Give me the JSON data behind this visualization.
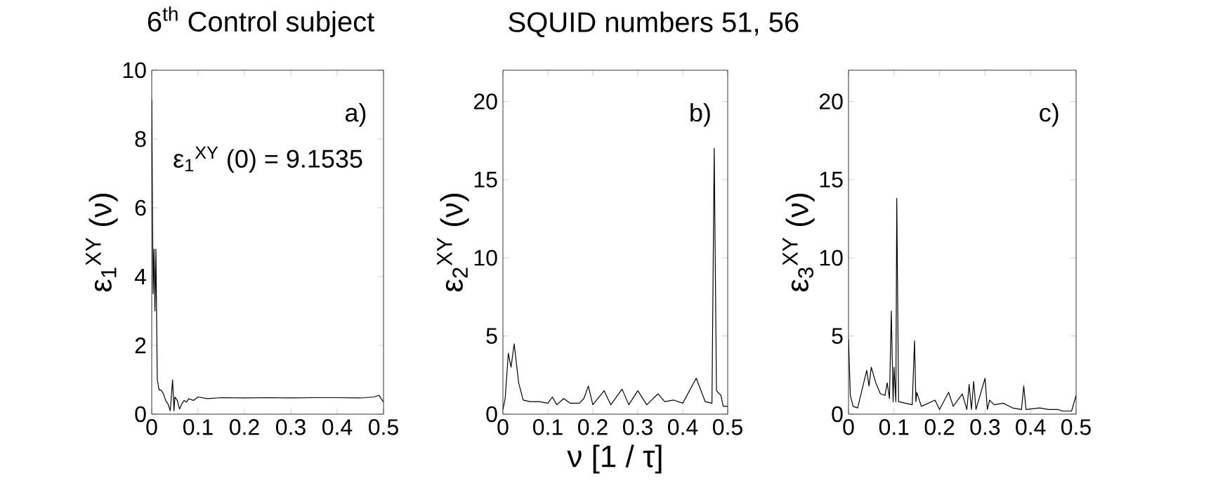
{
  "chart_data": [
    {
      "type": "line",
      "title": "6$^{th}$ Control subject",
      "ylabel": "ε$_{1}$$^{XY}$ (ν)",
      "annotations": [
        "a)",
        "ε$_{1}$$^{XY}$ (0) = 9.1535"
      ],
      "color": "#000000",
      "x": [
        0,
        0.003,
        0.005,
        0.007,
        0.009,
        0.012,
        0.016,
        0.02,
        0.025,
        0.03,
        0.035,
        0.04,
        0.045,
        0.048,
        0.05,
        0.055,
        0.06,
        0.065,
        0.07,
        0.075,
        0.08,
        0.09,
        0.1,
        0.12,
        0.15,
        0.2,
        0.25,
        0.3,
        0.35,
        0.4,
        0.45,
        0.48,
        0.49,
        0.495,
        0.5
      ],
      "values": [
        9.15,
        3.5,
        4.8,
        3.0,
        4.8,
        1.0,
        0.7,
        0.7,
        0.6,
        0.4,
        0.3,
        0.1,
        1.0,
        0.1,
        0.5,
        0.4,
        0.15,
        0.3,
        0.4,
        0.35,
        0.45,
        0.4,
        0.5,
        0.45,
        0.48,
        0.47,
        0.48,
        0.47,
        0.48,
        0.48,
        0.47,
        0.5,
        0.55,
        0.45,
        0.35
      ],
      "xlim": [
        0,
        0.5
      ],
      "ylim": [
        0,
        10
      ],
      "xticks": [
        0,
        0.1,
        0.2,
        0.3,
        0.4,
        0.5
      ],
      "yticks": [
        0,
        2,
        4,
        6,
        8,
        10
      ]
    },
    {
      "type": "line",
      "title": "SQUID numbers 51, 56",
      "xlabel": "ν [1 / τ]",
      "ylabel": "ε$_{2}$$^{XY}$ (ν)",
      "annotations": [
        "b)"
      ],
      "color": "#000000",
      "x": [
        0,
        0.005,
        0.012,
        0.018,
        0.025,
        0.035,
        0.045,
        0.06,
        0.08,
        0.1,
        0.11,
        0.12,
        0.135,
        0.15,
        0.17,
        0.18,
        0.19,
        0.2,
        0.225,
        0.24,
        0.265,
        0.28,
        0.3,
        0.32,
        0.345,
        0.36,
        0.38,
        0.4,
        0.43,
        0.45,
        0.465,
        0.47,
        0.475,
        0.485,
        0.49,
        0.5
      ],
      "values": [
        0.3,
        1.0,
        3.9,
        3.0,
        4.5,
        2.0,
        0.9,
        0.8,
        0.8,
        0.7,
        1.1,
        0.6,
        1.0,
        0.7,
        0.7,
        1.0,
        1.8,
        0.6,
        1.5,
        0.6,
        1.6,
        0.6,
        1.5,
        0.6,
        1.3,
        0.8,
        0.9,
        0.7,
        2.3,
        0.8,
        0.7,
        17.0,
        1.5,
        1.2,
        0.5,
        0.5
      ],
      "xlim": [
        0,
        0.5
      ],
      "ylim": [
        0,
        22
      ],
      "xticks": [
        0,
        0.1,
        0.2,
        0.3,
        0.4,
        0.5
      ],
      "yticks": [
        0,
        5,
        10,
        15,
        20
      ]
    },
    {
      "type": "line",
      "ylabel": "ε$_{3}$$^{XY}$ (ν)",
      "annotations": [
        "c)"
      ],
      "color": "#000000",
      "x": [
        0,
        0.004,
        0.01,
        0.02,
        0.04,
        0.045,
        0.05,
        0.06,
        0.07,
        0.08,
        0.085,
        0.09,
        0.094,
        0.098,
        0.1,
        0.104,
        0.106,
        0.11,
        0.14,
        0.145,
        0.148,
        0.15,
        0.16,
        0.19,
        0.2,
        0.22,
        0.23,
        0.25,
        0.26,
        0.265,
        0.27,
        0.275,
        0.28,
        0.3,
        0.305,
        0.31,
        0.32,
        0.34,
        0.36,
        0.38,
        0.385,
        0.39,
        0.42,
        0.44,
        0.46,
        0.47,
        0.49,
        0.5
      ],
      "values": [
        4.8,
        1.2,
        0.5,
        0.4,
        2.8,
        1.8,
        3.0,
        2.0,
        1.3,
        1.2,
        2.0,
        1.0,
        6.6,
        0.8,
        3.0,
        0.8,
        13.8,
        0.8,
        0.6,
        4.7,
        0.8,
        1.4,
        0.5,
        0.9,
        0.3,
        1.4,
        0.5,
        1.3,
        0.3,
        1.9,
        0.3,
        2.1,
        0.3,
        2.3,
        0.3,
        0.9,
        0.6,
        0.7,
        0.4,
        0.3,
        1.8,
        0.3,
        0.4,
        0.3,
        0.3,
        0.2,
        0.2,
        1.2
      ],
      "xlim": [
        0,
        0.5
      ],
      "ylim": [
        0,
        22
      ],
      "xticks": [
        0,
        0.1,
        0.2,
        0.3,
        0.4,
        0.5
      ],
      "yticks": [
        0,
        5,
        10,
        15,
        20
      ]
    }
  ]
}
